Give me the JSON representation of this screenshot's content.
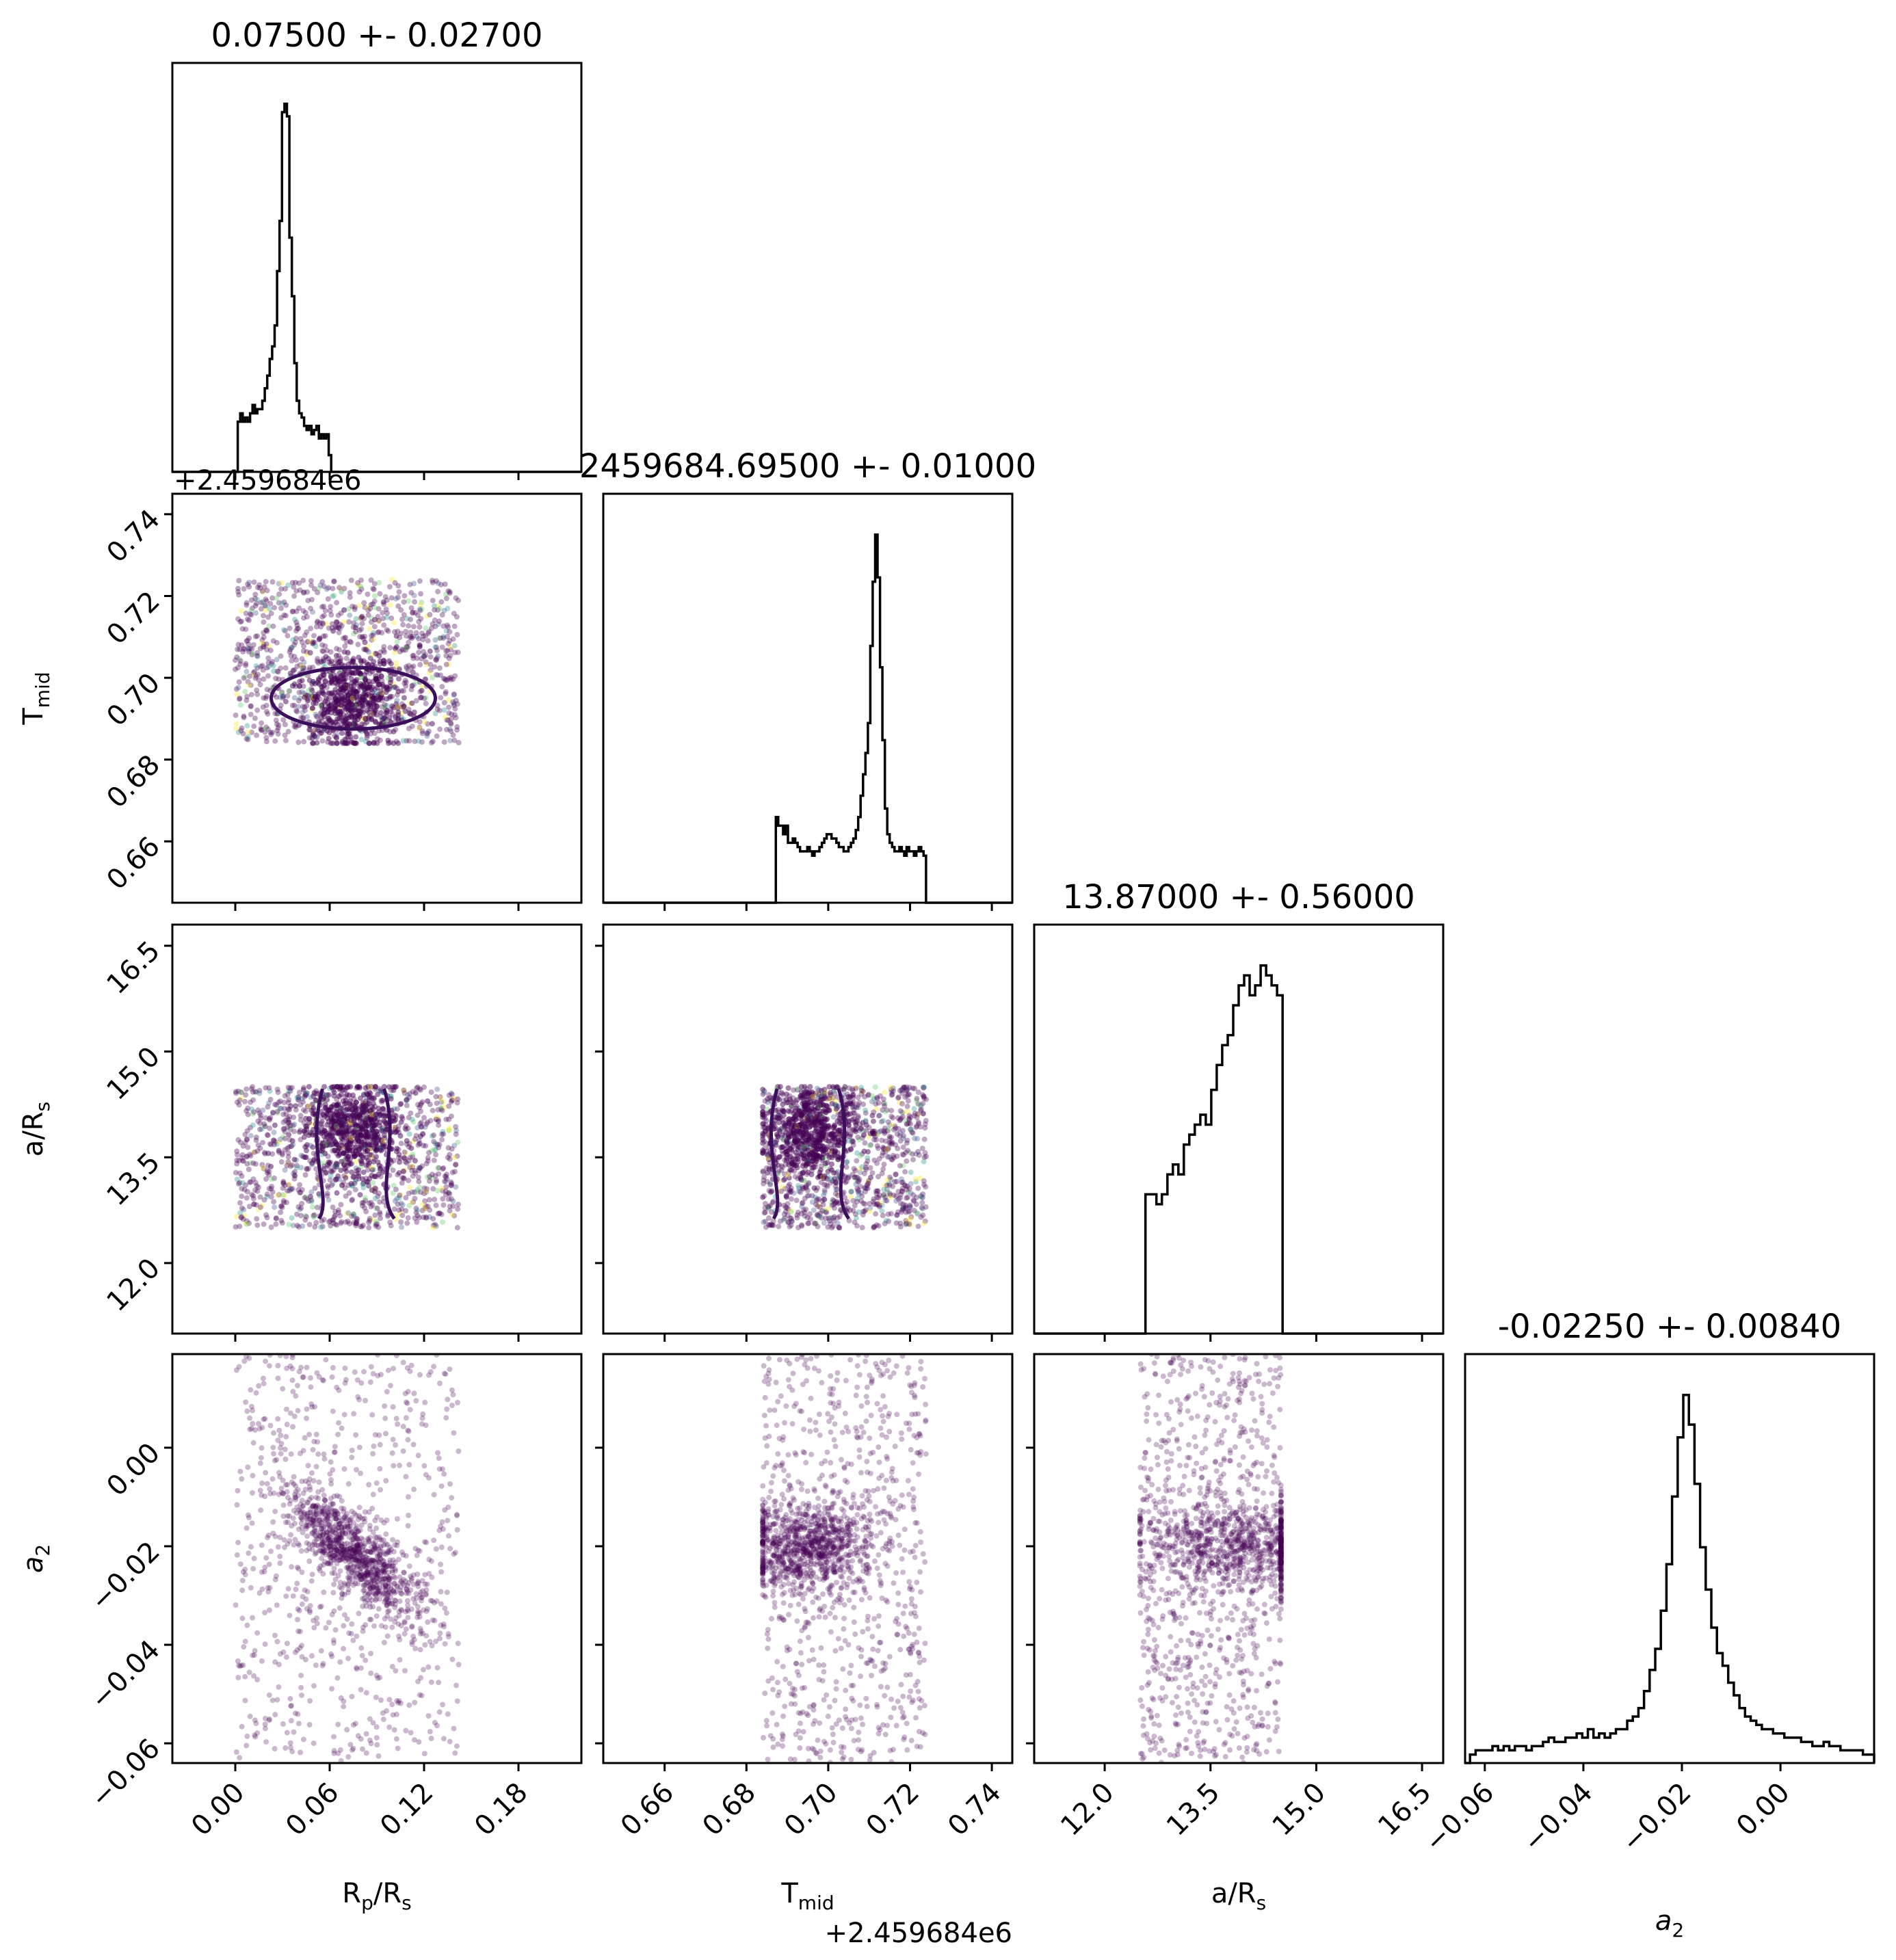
{
  "chart_data": {
    "type": "scatter",
    "variant": "corner-plot",
    "parameters": [
      {
        "name": "R_p/R_s",
        "label_parts": [
          [
            "R",
            ""
          ],
          [
            "p",
            "sub"
          ],
          [
            "/R",
            ""
          ],
          [
            "s",
            "sub"
          ]
        ],
        "range": [
          -0.04,
          0.22
        ],
        "ticks": [
          "0.00",
          "0.06",
          "0.12",
          "0.18"
        ],
        "tick_values": [
          0.0,
          0.06,
          0.12,
          0.18
        ],
        "title": "0.07500 +- 0.02700",
        "mean": 0.075,
        "std": 0.027
      },
      {
        "name": "T_mid",
        "label_parts": [
          [
            "T",
            ""
          ],
          [
            "mid",
            "sub"
          ]
        ],
        "range": [
          0.645,
          0.745
        ],
        "ticks": [
          "0.66",
          "0.68",
          "0.70",
          "0.72",
          "0.74"
        ],
        "tick_values": [
          0.66,
          0.68,
          0.7,
          0.72,
          0.74
        ],
        "offset": "+2.459684e6",
        "title": "2459684.69500 +- 0.01000",
        "mean": 0.695,
        "std": 0.01
      },
      {
        "name": "a/R_s",
        "label_parts": [
          [
            "a/R",
            ""
          ],
          [
            "s",
            "sub"
          ]
        ],
        "range": [
          11.0,
          16.8
        ],
        "ticks": [
          "12.0",
          "13.5",
          "15.0",
          "16.5"
        ],
        "tick_values": [
          12.0,
          13.5,
          15.0,
          16.5
        ],
        "title": "13.87000 +- 0.56000",
        "mean": 13.87,
        "std": 0.56
      },
      {
        "name": "a_2",
        "label_parts": [
          [
            "a",
            "it"
          ],
          [
            "2",
            "sub"
          ]
        ],
        "range": [
          -0.064,
          0.019
        ],
        "ticks": [
          "−0.06",
          "−0.04",
          "−0.02",
          "0.00"
        ],
        "tick_values": [
          -0.06,
          -0.04,
          -0.02,
          0.0
        ],
        "title": "-0.02250 +- 0.00840",
        "mean": -0.0225,
        "std": 0.0084
      }
    ],
    "diagonal_histograms": [
      {
        "param": 0,
        "bins_x": [
          0.0,
          0.0625
        ],
        "counts": [
          0,
          12,
          14,
          12,
          13,
          12,
          14,
          16,
          14,
          15,
          15,
          17,
          20,
          23,
          27,
          30,
          35,
          48,
          60,
          86,
          88,
          85,
          56,
          42,
          26,
          17,
          14,
          13,
          11,
          10,
          11,
          9,
          10,
          11,
          8,
          9,
          8,
          9,
          4,
          0
        ]
      },
      {
        "param": 1,
        "bins_x": [
          0.686,
          0.704
        ],
        "counts": [
          0,
          0,
          20,
          18,
          18,
          16,
          18,
          14,
          14,
          15,
          14,
          13,
          12,
          12,
          12,
          13,
          12,
          11,
          12,
          12,
          13,
          14,
          15,
          16,
          16,
          15,
          15,
          14,
          13,
          13,
          12,
          12,
          13,
          14,
          15,
          17,
          20,
          25,
          30,
          35,
          42,
          60,
          75,
          86,
          76,
          55,
          38,
          22,
          16,
          14,
          13,
          12,
          12,
          13,
          12,
          11,
          13,
          12,
          12,
          11,
          12,
          13,
          12,
          11,
          0
        ]
      },
      {
        "param": 2,
        "bins_x": [
          12.5,
          14.6
        ],
        "counts": [
          0,
          28,
          28,
          26,
          28,
          32,
          34,
          32,
          38,
          40,
          42,
          44,
          42,
          49,
          54,
          58,
          60,
          66,
          70,
          72,
          68,
          70,
          74,
          72,
          70,
          68,
          0
        ]
      },
      {
        "param": 3,
        "bins_x": [
          -0.063,
          0.019
        ],
        "counts": [
          2,
          3,
          3,
          3,
          4,
          3,
          4,
          3,
          4,
          4,
          3,
          4,
          4,
          5,
          6,
          5,
          5,
          6,
          6,
          7,
          6,
          8,
          6,
          7,
          6,
          7,
          8,
          8,
          10,
          11,
          13,
          17,
          22,
          27,
          36,
          47,
          63,
          77,
          87,
          80,
          66,
          51,
          41,
          32,
          26,
          23,
          19,
          16,
          13,
          11,
          10,
          9,
          8,
          8,
          7,
          7,
          6,
          6,
          6,
          5,
          5,
          4,
          4,
          5,
          4,
          4,
          3,
          3,
          3,
          3,
          2,
          2
        ]
      }
    ],
    "axis_offset_labels": {
      "T_mid_y": "+2.459684e6",
      "T_mid_x": "+2.459684e6"
    },
    "color_map": "viridis",
    "contour_color": "#3b0f5c",
    "point_color": "#440154",
    "grid": false,
    "legend": "none"
  }
}
